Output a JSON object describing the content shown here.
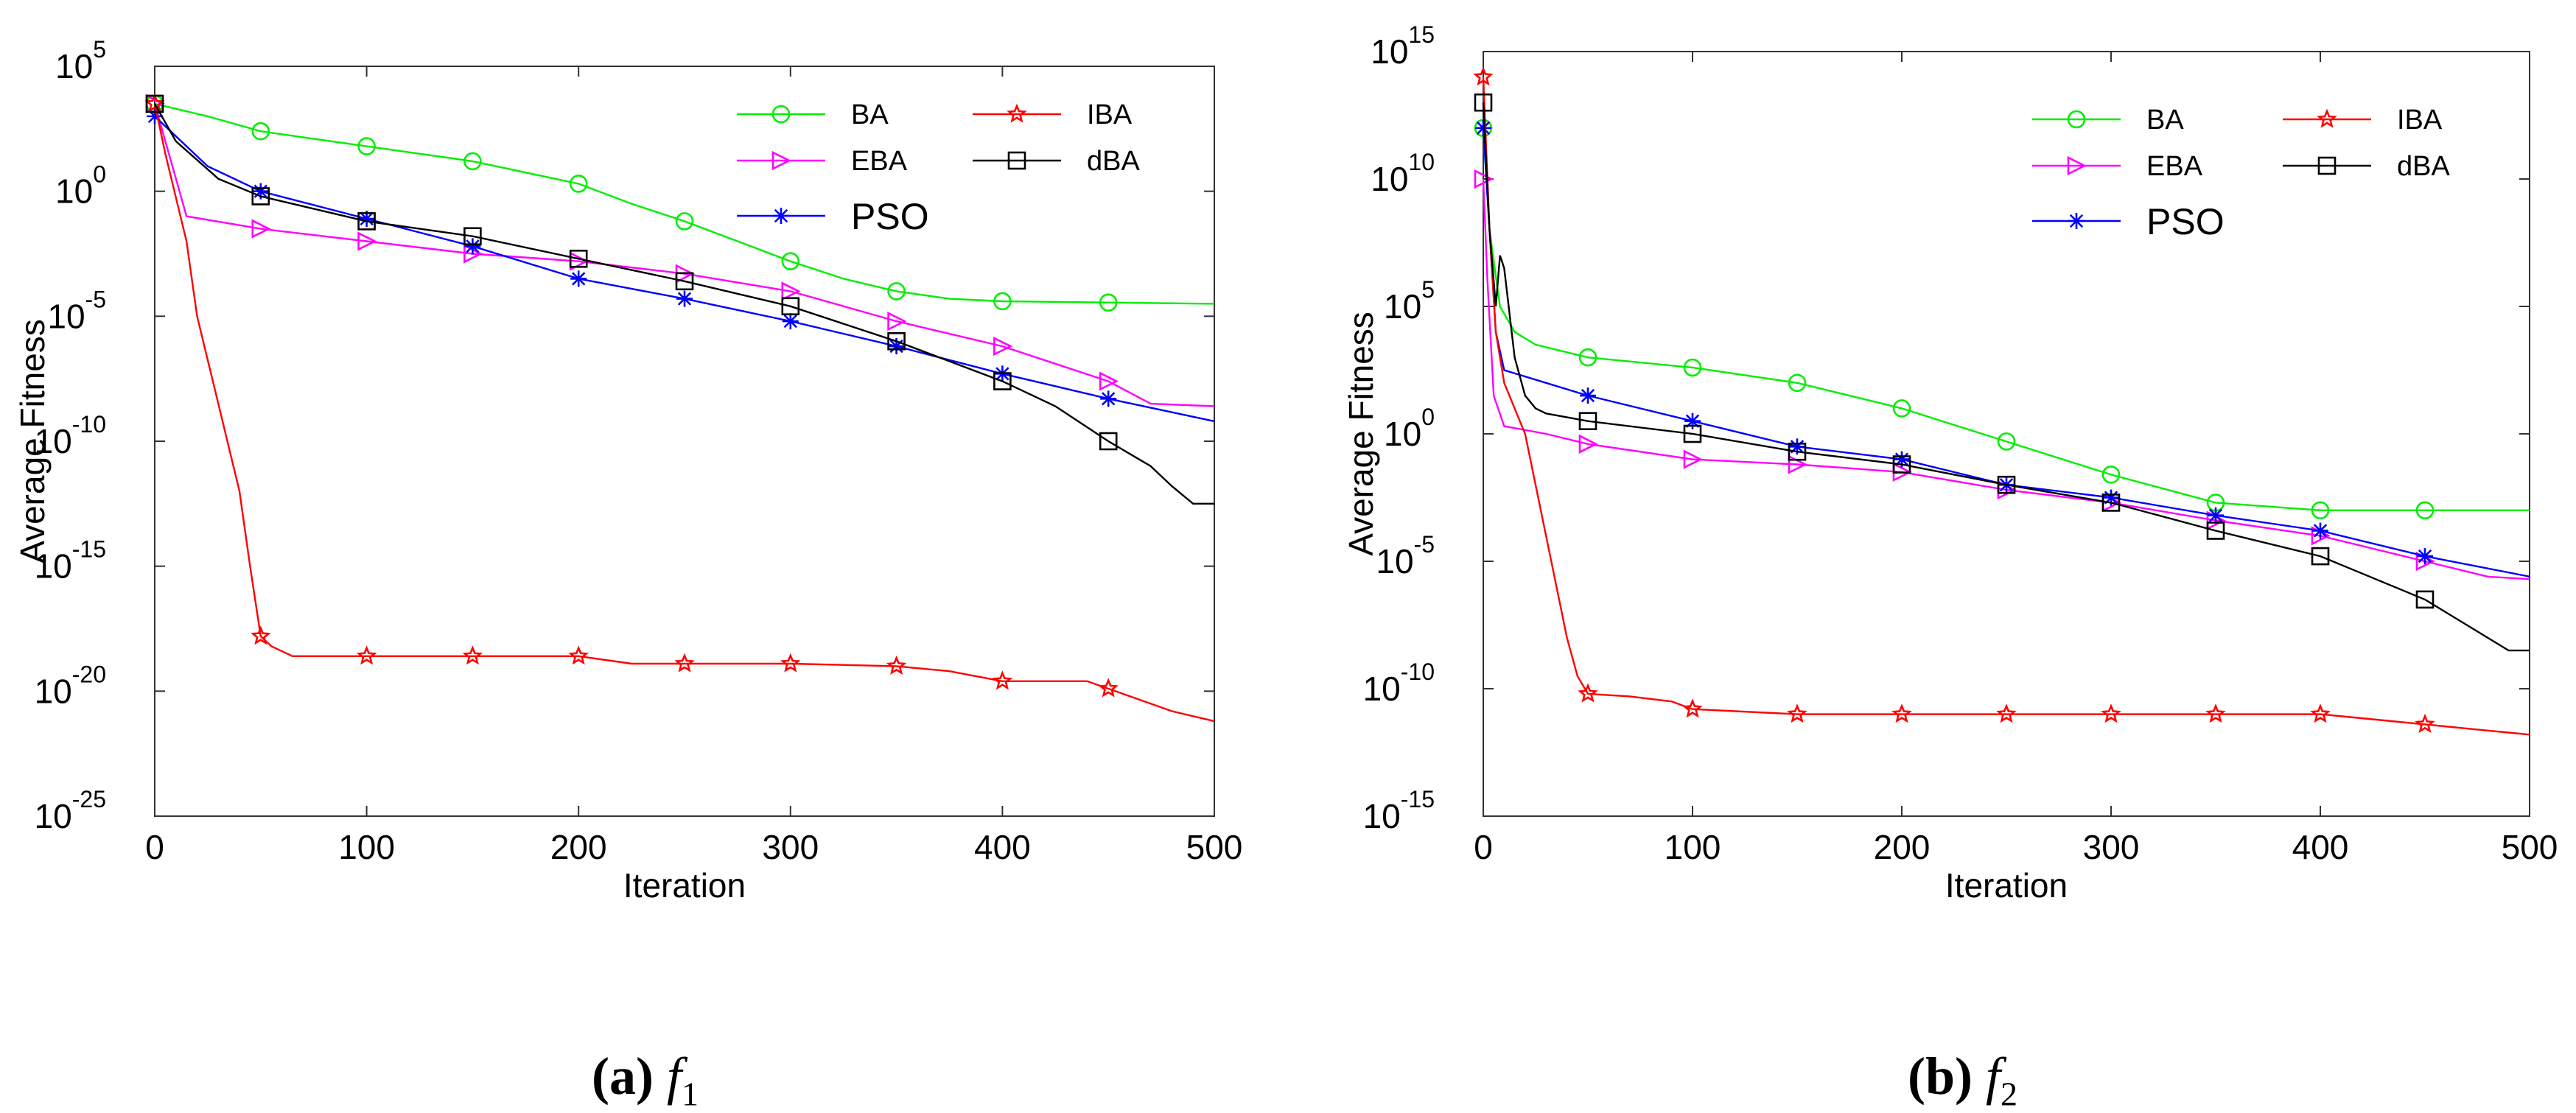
{
  "chart_data": [
    {
      "type": "line",
      "yscale": "log",
      "xlabel": "Iteration",
      "ylabel": "Average Fitness",
      "xlim": [
        0,
        500
      ],
      "ylim_exp": [
        -25,
        5
      ],
      "x_ticks": [
        "0",
        "100",
        "200",
        "300",
        "400",
        "500"
      ],
      "y_tick_exps": [
        "5",
        "0",
        "-5",
        "-10",
        "-15",
        "-20",
        "-25"
      ],
      "legend": {
        "placement": "top-right",
        "entries": [
          {
            "name": "BA",
            "color": "#00ee00",
            "marker": "circle",
            "fontsize": "small"
          },
          {
            "name": "EBA",
            "color": "#ff00ff",
            "marker": "triangle-right",
            "fontsize": "small"
          },
          {
            "name": "PSO",
            "color": "#0000ff",
            "marker": "asterisk",
            "fontsize": "large"
          },
          {
            "name": "IBA",
            "color": "#ff0000",
            "marker": "star",
            "fontsize": "small"
          },
          {
            "name": "dBA",
            "color": "#000000",
            "marker": "square",
            "fontsize": "small"
          }
        ]
      },
      "series": [
        {
          "name": "BA",
          "color": "#00ee00",
          "marker": "circle",
          "marker_step": 50,
          "x": [
            0,
            25,
            50,
            75,
            100,
            150,
            200,
            225,
            250,
            275,
            300,
            325,
            350,
            375,
            400,
            450,
            500
          ],
          "y": [
            3.5,
            3.0,
            2.4,
            2.1,
            1.8,
            1.2,
            0.3,
            -0.5,
            -1.2,
            -2.0,
            -2.8,
            -3.5,
            -4.0,
            -4.3,
            -4.4,
            -4.45,
            -4.5
          ]
        },
        {
          "name": "EBA",
          "color": "#ff00ff",
          "marker": "triangle-right",
          "marker_step": 50,
          "x": [
            0,
            5,
            10,
            15,
            50,
            100,
            150,
            200,
            250,
            300,
            350,
            400,
            450,
            470,
            500
          ],
          "y": [
            3.5,
            2.0,
            0.5,
            -1.0,
            -1.5,
            -2.0,
            -2.5,
            -2.8,
            -3.3,
            -4.0,
            -5.2,
            -6.2,
            -7.6,
            -8.5,
            -8.6
          ]
        },
        {
          "name": "PSO",
          "color": "#0000ff",
          "marker": "asterisk",
          "marker_step": 50,
          "x": [
            0,
            25,
            50,
            100,
            150,
            200,
            250,
            300,
            350,
            400,
            450,
            500
          ],
          "y": [
            3.0,
            1.0,
            0.0,
            -1.1,
            -2.2,
            -3.5,
            -4.3,
            -5.2,
            -6.2,
            -7.3,
            -8.3,
            -9.2
          ]
        },
        {
          "name": "IBA",
          "color": "#ff0000",
          "marker": "star",
          "marker_step": 50,
          "x": [
            0,
            5,
            15,
            20,
            30,
            40,
            45,
            50,
            55,
            65,
            100,
            150,
            200,
            225,
            300,
            350,
            375,
            400,
            440,
            460,
            480,
            500
          ],
          "y": [
            3.5,
            1.5,
            -2.0,
            -5.0,
            -8.5,
            -12.0,
            -15.0,
            -17.8,
            -18.2,
            -18.6,
            -18.6,
            -18.6,
            -18.6,
            -18.9,
            -18.9,
            -19.0,
            -19.2,
            -19.6,
            -19.6,
            -20.2,
            -20.8,
            -21.2
          ]
        },
        {
          "name": "dBA",
          "color": "#000000",
          "marker": "square",
          "marker_step": 50,
          "x": [
            0,
            10,
            30,
            50,
            100,
            150,
            200,
            250,
            300,
            350,
            400,
            425,
            450,
            470,
            480,
            490,
            500
          ],
          "y": [
            3.5,
            2.0,
            0.5,
            -0.2,
            -1.2,
            -1.8,
            -2.7,
            -3.6,
            -4.6,
            -6.0,
            -7.6,
            -8.6,
            -10.0,
            -11.0,
            -11.8,
            -12.5,
            -12.5
          ]
        }
      ]
    },
    {
      "type": "line",
      "yscale": "log",
      "xlabel": "Iteration",
      "ylabel": "Average Fitness",
      "xlim": [
        0,
        500
      ],
      "ylim_exp": [
        -15,
        15
      ],
      "x_ticks": [
        "0",
        "100",
        "200",
        "300",
        "400",
        "500"
      ],
      "y_tick_exps": [
        "15",
        "10",
        "5",
        "0",
        "-5",
        "-10",
        "-15"
      ],
      "legend": {
        "placement": "top-right",
        "entries": [
          {
            "name": "BA",
            "color": "#00ee00",
            "marker": "circle",
            "fontsize": "small"
          },
          {
            "name": "EBA",
            "color": "#ff00ff",
            "marker": "triangle-right",
            "fontsize": "small"
          },
          {
            "name": "PSO",
            "color": "#0000ff",
            "marker": "asterisk",
            "fontsize": "large"
          },
          {
            "name": "IBA",
            "color": "#ff0000",
            "marker": "star",
            "fontsize": "small"
          },
          {
            "name": "dBA",
            "color": "#000000",
            "marker": "square",
            "fontsize": "small"
          }
        ]
      },
      "series": [
        {
          "name": "BA",
          "color": "#00ee00",
          "marker": "circle",
          "marker_step": 50,
          "x": [
            0,
            3,
            8,
            15,
            25,
            50,
            100,
            150,
            200,
            250,
            300,
            350,
            400,
            450,
            500
          ],
          "y": [
            12.0,
            8.0,
            5.0,
            4.0,
            3.5,
            3.0,
            2.6,
            2.0,
            1.0,
            -0.3,
            -1.6,
            -2.7,
            -3.0,
            -3.0,
            -3.0
          ]
        },
        {
          "name": "EBA",
          "color": "#ff00ff",
          "marker": "triangle-right",
          "marker_step": 50,
          "x": [
            0,
            2,
            5,
            10,
            30,
            50,
            100,
            150,
            200,
            250,
            300,
            350,
            400,
            450,
            480,
            500
          ],
          "y": [
            10.0,
            6.0,
            1.5,
            0.3,
            0.0,
            -0.4,
            -1.0,
            -1.2,
            -1.5,
            -2.2,
            -2.7,
            -3.4,
            -4.0,
            -5.0,
            -5.6,
            -5.7
          ]
        },
        {
          "name": "PSO",
          "color": "#0000ff",
          "marker": "asterisk",
          "marker_step": 50,
          "x": [
            0,
            3,
            6,
            10,
            30,
            50,
            100,
            150,
            200,
            250,
            300,
            350,
            400,
            450,
            500
          ],
          "y": [
            12.0,
            8.0,
            4.0,
            2.5,
            2.0,
            1.5,
            0.5,
            -0.5,
            -1.0,
            -2.0,
            -2.5,
            -3.2,
            -3.8,
            -4.8,
            -5.6
          ]
        },
        {
          "name": "IBA",
          "color": "#ff0000",
          "marker": "star",
          "marker_step": 50,
          "x": [
            0,
            3,
            6,
            10,
            15,
            20,
            25,
            30,
            35,
            40,
            45,
            50,
            70,
            90,
            100,
            150,
            200,
            250,
            300,
            350,
            400,
            425,
            450,
            475,
            500
          ],
          "y": [
            14.0,
            8.0,
            4.0,
            2.0,
            1.0,
            0.0,
            -2.0,
            -4.0,
            -6.0,
            -8.0,
            -9.5,
            -10.2,
            -10.3,
            -10.5,
            -10.8,
            -11.0,
            -11.0,
            -11.0,
            -11.0,
            -11.0,
            -11.0,
            -11.2,
            -11.4,
            -11.6,
            -11.8
          ]
        },
        {
          "name": "dBA",
          "color": "#000000",
          "marker": "square",
          "marker_step": 50,
          "x": [
            0,
            3,
            6,
            8,
            10,
            15,
            20,
            25,
            30,
            50,
            100,
            150,
            200,
            250,
            300,
            350,
            400,
            450,
            470,
            490,
            500
          ],
          "y": [
            13.0,
            8.0,
            5.0,
            7.0,
            6.5,
            3.0,
            1.5,
            1.0,
            0.8,
            0.5,
            0.0,
            -0.7,
            -1.2,
            -2.0,
            -2.7,
            -3.8,
            -4.8,
            -6.5,
            -7.5,
            -8.5,
            -8.5
          ]
        }
      ]
    }
  ],
  "captions": [
    {
      "letter": "(a)",
      "func": "f",
      "sub": "1"
    },
    {
      "letter": "(b)",
      "func": "f",
      "sub": "2"
    }
  ]
}
